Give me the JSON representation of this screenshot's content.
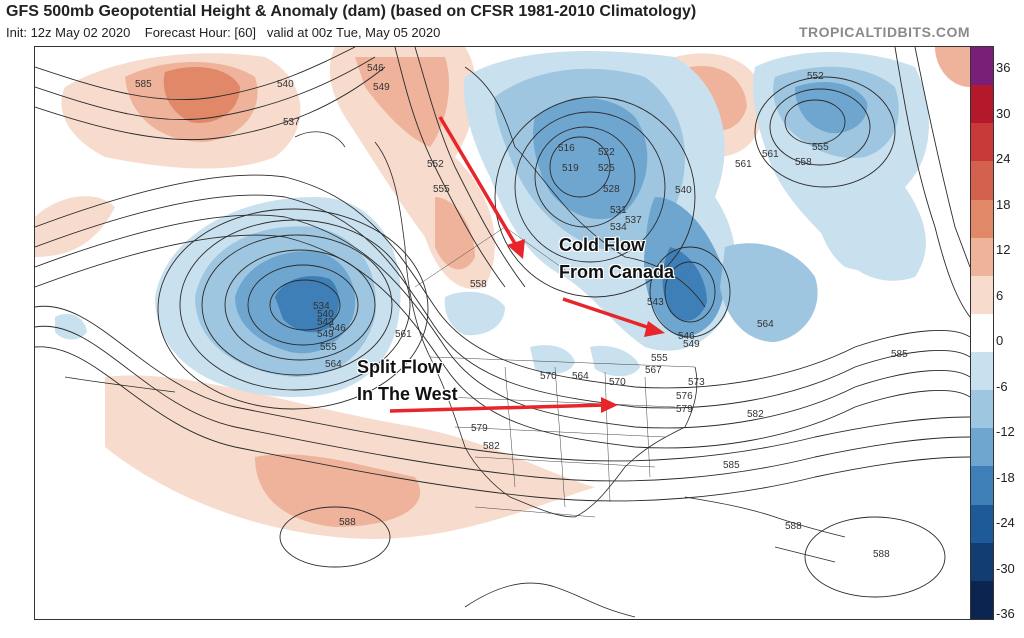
{
  "header": {
    "title": "GFS 500mb Geopotential Height & Anomaly (dam) (based on CFSR 1981-2010 Climatology)",
    "init": "Init: 12z May 02 2020",
    "forecast_hour": "Forecast Hour: [60]",
    "valid": "valid at 00z Tue, May 05 2020",
    "credit": "TROPICALTIDBITS.COM"
  },
  "colorbar": {
    "ticks": [
      "36",
      "30",
      "24",
      "18",
      "12",
      "6",
      "0",
      "-6",
      "-12",
      "-18",
      "-24",
      "-30",
      "-36"
    ],
    "colors": [
      "#7a1f78",
      "#b3192b",
      "#c83a3a",
      "#d4604e",
      "#e08868",
      "#eeb39a",
      "#f7dccd",
      "#ffffff",
      "#c9e0ee",
      "#9ec6e0",
      "#6fa6d0",
      "#3f7fb8",
      "#1f5a98",
      "#123d72",
      "#0b2550"
    ]
  },
  "annotations": {
    "cold_flow_line1": "Cold Flow",
    "cold_flow_line2": "From Canada",
    "split_flow_line1": "Split Flow",
    "split_flow_line2": "In The West"
  },
  "contour_labels": [
    "585",
    "540",
    "537",
    "546",
    "549",
    "552",
    "555",
    "558",
    "561",
    "564",
    "534",
    "540",
    "543",
    "546",
    "549",
    "555",
    "516",
    "522",
    "519",
    "525",
    "528",
    "531",
    "534",
    "537",
    "540",
    "543",
    "546",
    "549",
    "555",
    "561",
    "552",
    "555",
    "558",
    "561",
    "564",
    "567",
    "570",
    "573",
    "576",
    "579",
    "582",
    "585",
    "588",
    "588",
    "588",
    "579",
    "582",
    "585",
    "564",
    "570"
  ]
}
